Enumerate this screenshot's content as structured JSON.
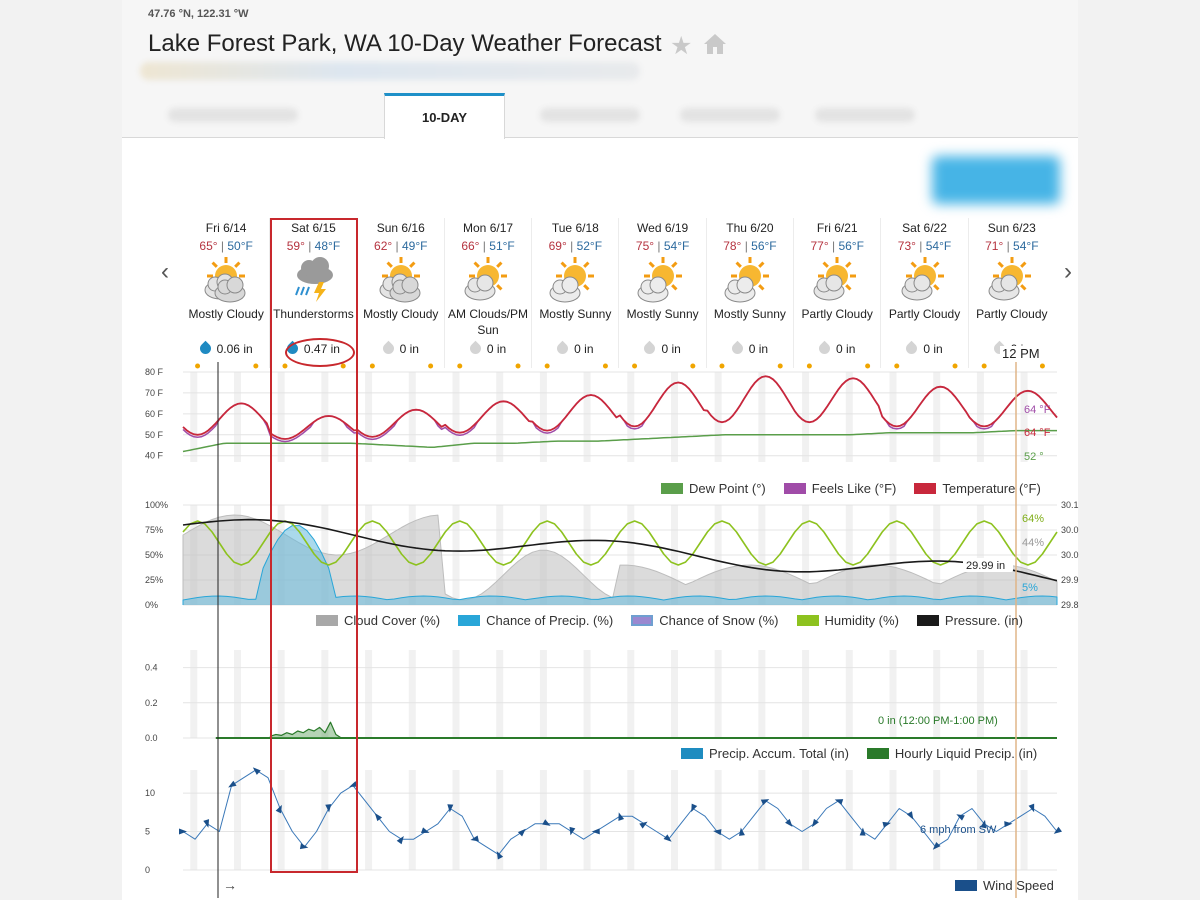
{
  "header": {
    "coordinates": "47.76 °N, 122.31 °W",
    "title": "Lake Forest Park, WA 10-Day Weather Forecast",
    "active_tab": "10-DAY"
  },
  "days": [
    {
      "date": "Fri 6/14",
      "hi": "65°",
      "lo": "50°F",
      "condition": "Mostly Cloudy",
      "icon": "mostly-cloudy-icon",
      "precip": "0.06 in",
      "wet": true
    },
    {
      "date": "Sat 6/15",
      "hi": "59°",
      "lo": "48°F",
      "condition": "Thunderstorms",
      "icon": "thunderstorm-icon",
      "precip": "0.47 in",
      "wet": true
    },
    {
      "date": "Sun 6/16",
      "hi": "62°",
      "lo": "49°F",
      "condition": "Mostly Cloudy",
      "icon": "mostly-cloudy-icon",
      "precip": "0 in",
      "wet": false
    },
    {
      "date": "Mon 6/17",
      "hi": "66°",
      "lo": "51°F",
      "condition": "AM Clouds/PM Sun",
      "icon": "partly-cloudy-icon",
      "precip": "0 in",
      "wet": false
    },
    {
      "date": "Tue 6/18",
      "hi": "69°",
      "lo": "52°F",
      "condition": "Mostly Sunny",
      "icon": "mostly-sunny-icon",
      "precip": "0 in",
      "wet": false
    },
    {
      "date": "Wed 6/19",
      "hi": "75°",
      "lo": "54°F",
      "condition": "Mostly Sunny",
      "icon": "mostly-sunny-icon",
      "precip": "0 in",
      "wet": false
    },
    {
      "date": "Thu 6/20",
      "hi": "78°",
      "lo": "56°F",
      "condition": "Mostly Sunny",
      "icon": "mostly-sunny-icon",
      "precip": "0 in",
      "wet": false
    },
    {
      "date": "Fri 6/21",
      "hi": "77°",
      "lo": "56°F",
      "condition": "Partly Cloudy",
      "icon": "partly-cloudy-icon",
      "precip": "0 in",
      "wet": false
    },
    {
      "date": "Sat 6/22",
      "hi": "73°",
      "lo": "54°F",
      "condition": "Partly Cloudy",
      "icon": "partly-cloudy-icon",
      "precip": "0 in",
      "wet": false
    },
    {
      "date": "Sun 6/23",
      "hi": "71°",
      "lo": "54°F",
      "condition": "Partly Cloudy",
      "icon": "partly-cloudy-icon",
      "precip": "0 in",
      "wet": false
    }
  ],
  "cursor": {
    "time_label": "12 PM",
    "temp_readout": "64 °F",
    "feels_readout": "64 °F",
    "dew_readout": "52 °",
    "humidity_readout": "64%",
    "cloud_readout": "44%",
    "pressure_readout": "29.99 in",
    "precip_chance_readout": "5%",
    "precip_readout": "0 in (12:00 PM-1:00 PM)",
    "wind_readout": "6 mph from SW"
  },
  "colors": {
    "temperature": "#c8283c",
    "feels_like": "#a04ca8",
    "dew_point": "#5a9e4a",
    "cloud_cover": "#a8a8a8",
    "precip_chance": "#29a6d8",
    "snow": "#9a88d0",
    "humidity": "#8dc21f",
    "pressure": "#1a1a1a",
    "precip_total": "#1e8cc0",
    "hourly_precip": "#2a7a2a",
    "wind": "#1a4f8a",
    "highlight": "#c8282d"
  },
  "chart_data": [
    {
      "type": "line",
      "name": "temperature-panel",
      "ylabel_ticks": [
        "40 F",
        "50 F",
        "60 F",
        "70 F",
        "80 F"
      ],
      "ylim": [
        37,
        80
      ],
      "legend": [
        "Dew Point (°)",
        "Feels Like (°F)",
        "Temperature (°F)"
      ],
      "series": [
        {
          "name": "Temperature (°F)",
          "daily_high": [
            65,
            59,
            62,
            66,
            69,
            75,
            78,
            77,
            73,
            71
          ],
          "daily_low": [
            50,
            48,
            49,
            51,
            52,
            54,
            56,
            56,
            54,
            54
          ]
        },
        {
          "name": "Dew Point (°)",
          "values": [
            42,
            46,
            46,
            46,
            46,
            45,
            44,
            46,
            46,
            47,
            47,
            48,
            49,
            50,
            50,
            50,
            50,
            51,
            51,
            51,
            52,
            52
          ]
        }
      ]
    },
    {
      "type": "area",
      "name": "cloud-precip-panel",
      "ylabel_ticks": [
        "0%",
        "25%",
        "50%",
        "75%",
        "100%"
      ],
      "ylim": [
        0,
        100
      ],
      "legend": [
        "Cloud Cover (%)",
        "Chance of Precip. (%)",
        "Chance of Snow (%)",
        "Humidity (%)",
        "Pressure. (in)"
      ],
      "right_ticks": [
        "29.8",
        "29.9",
        "30.0",
        "30.0",
        "30.1"
      ]
    },
    {
      "type": "line",
      "name": "precip-panel",
      "ylabel_ticks": [
        "0.0",
        "0.2",
        "0.4"
      ],
      "ylim": [
        0,
        0.5
      ],
      "legend": [
        "Precip. Accum. Total (in)",
        "Hourly Liquid Precip. (in)"
      ]
    },
    {
      "type": "line",
      "name": "wind-panel",
      "ylabel_ticks": [
        "0",
        "5",
        "10"
      ],
      "ylim": [
        0,
        13
      ],
      "legend": [
        "Wind Speed"
      ],
      "series": [
        {
          "name": "Wind Speed",
          "values": [
            5,
            4,
            6,
            5,
            11,
            12,
            13,
            12,
            8,
            5,
            3,
            5,
            8,
            10,
            11,
            9,
            7,
            5,
            4,
            4,
            5,
            6,
            8,
            7,
            4,
            3,
            2,
            4,
            5,
            6,
            6,
            6,
            5,
            4,
            5,
            6,
            7,
            7,
            6,
            5,
            4,
            6,
            8,
            7,
            5,
            4,
            5,
            7,
            9,
            8,
            6,
            5,
            6,
            8,
            9,
            7,
            5,
            4,
            6,
            8,
            7,
            5,
            3,
            4,
            7,
            8,
            6,
            5,
            6,
            7,
            8,
            7,
            5
          ]
        }
      ]
    }
  ]
}
